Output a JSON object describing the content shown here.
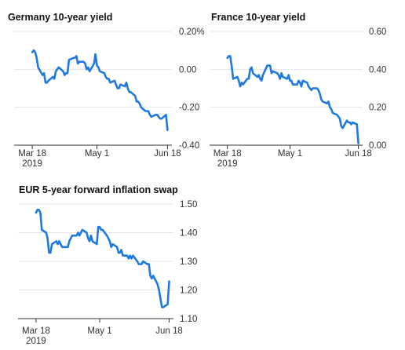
{
  "chart_data": [
    {
      "type": "line",
      "title": "Germany 10-year yield",
      "xlabel": "",
      "ylabel": "",
      "x_ticks": [
        {
          "date": "2019-03-18",
          "lines": [
            "Mar 18",
            "2019"
          ]
        },
        {
          "date": "2019-05-01",
          "lines": [
            "May 1"
          ]
        },
        {
          "date": "2019-06-18",
          "lines": [
            "Jun 18"
          ]
        }
      ],
      "xlim": [
        "2019-03-11",
        "2019-06-21"
      ],
      "y_ticks": [
        {
          "value": 0.2,
          "label": "0.20%"
        },
        {
          "value": 0.0,
          "label": "0.00"
        },
        {
          "value": -0.2,
          "label": "-0.20"
        },
        {
          "value": -0.4,
          "label": "-0.40"
        }
      ],
      "ylim": [
        -0.4,
        0.2
      ],
      "grid": true,
      "color": "#1f7ae0",
      "series": [
        {
          "x": [
            "2019-03-18",
            "2019-03-19",
            "2019-03-20",
            "2019-03-21",
            "2019-03-22",
            "2019-03-25",
            "2019-03-26",
            "2019-03-27",
            "2019-03-28",
            "2019-03-29",
            "2019-04-01",
            "2019-04-02",
            "2019-04-03",
            "2019-04-04",
            "2019-04-05",
            "2019-04-08",
            "2019-04-09",
            "2019-04-10",
            "2019-04-11",
            "2019-04-12",
            "2019-04-15",
            "2019-04-16",
            "2019-04-17",
            "2019-04-18",
            "2019-04-19",
            "2019-04-22",
            "2019-04-23",
            "2019-04-24",
            "2019-04-25",
            "2019-04-26",
            "2019-04-29",
            "2019-04-30",
            "2019-05-01",
            "2019-05-02",
            "2019-05-03",
            "2019-05-06",
            "2019-05-07",
            "2019-05-08",
            "2019-05-09",
            "2019-05-10",
            "2019-05-13",
            "2019-05-14",
            "2019-05-15",
            "2019-05-16",
            "2019-05-17",
            "2019-05-20",
            "2019-05-21",
            "2019-05-22",
            "2019-05-23",
            "2019-05-24",
            "2019-05-27",
            "2019-05-28",
            "2019-05-29",
            "2019-05-30",
            "2019-05-31",
            "2019-06-03",
            "2019-06-04",
            "2019-06-05",
            "2019-06-06",
            "2019-06-07",
            "2019-06-10",
            "2019-06-11",
            "2019-06-12",
            "2019-06-13",
            "2019-06-14",
            "2019-06-17",
            "2019-06-18"
          ],
          "values": [
            0.09,
            0.1,
            0.09,
            0.06,
            0.01,
            -0.03,
            -0.02,
            -0.07,
            -0.07,
            -0.06,
            -0.04,
            -0.05,
            -0.01,
            0.0,
            0.01,
            -0.01,
            -0.03,
            -0.02,
            -0.02,
            0.05,
            0.06,
            0.06,
            0.07,
            0.03,
            0.04,
            0.04,
            0.03,
            0.0,
            0.01,
            -0.01,
            0.03,
            0.08,
            0.02,
            0.01,
            -0.01,
            -0.02,
            -0.04,
            -0.05,
            -0.05,
            -0.07,
            -0.06,
            -0.08,
            -0.1,
            -0.1,
            -0.08,
            -0.09,
            -0.07,
            -0.1,
            -0.12,
            -0.12,
            -0.14,
            -0.17,
            -0.17,
            -0.18,
            -0.2,
            -0.22,
            -0.22,
            -0.22,
            -0.24,
            -0.25,
            -0.24,
            -0.24,
            -0.25,
            -0.26,
            -0.26,
            -0.24,
            -0.32
          ]
        }
      ]
    },
    {
      "type": "line",
      "title": "France 10-year yield",
      "xlabel": "",
      "ylabel": "",
      "x_ticks": [
        {
          "date": "2019-03-18",
          "lines": [
            "Mar 18",
            "2019"
          ]
        },
        {
          "date": "2019-05-01",
          "lines": [
            "May 1"
          ]
        },
        {
          "date": "2019-06-18",
          "lines": [
            "Jun 18"
          ]
        }
      ],
      "xlim": [
        "2019-03-11",
        "2019-06-21"
      ],
      "y_ticks": [
        {
          "value": 0.6,
          "label": "0.60"
        },
        {
          "value": 0.4,
          "label": "0.40"
        },
        {
          "value": 0.2,
          "label": "0.20"
        },
        {
          "value": 0.0,
          "label": "0.00"
        }
      ],
      "ylim": [
        0.0,
        0.6
      ],
      "grid": true,
      "color": "#1f7ae0",
      "series": [
        {
          "x": [
            "2019-03-18",
            "2019-03-19",
            "2019-03-20",
            "2019-03-21",
            "2019-03-22",
            "2019-03-25",
            "2019-03-26",
            "2019-03-27",
            "2019-03-28",
            "2019-03-29",
            "2019-04-01",
            "2019-04-02",
            "2019-04-03",
            "2019-04-04",
            "2019-04-05",
            "2019-04-08",
            "2019-04-09",
            "2019-04-10",
            "2019-04-11",
            "2019-04-12",
            "2019-04-15",
            "2019-04-16",
            "2019-04-17",
            "2019-04-18",
            "2019-04-19",
            "2019-04-22",
            "2019-04-23",
            "2019-04-24",
            "2019-04-25",
            "2019-04-26",
            "2019-04-29",
            "2019-04-30",
            "2019-05-01",
            "2019-05-02",
            "2019-05-03",
            "2019-05-06",
            "2019-05-07",
            "2019-05-08",
            "2019-05-09",
            "2019-05-10",
            "2019-05-13",
            "2019-05-14",
            "2019-05-15",
            "2019-05-16",
            "2019-05-17",
            "2019-05-20",
            "2019-05-21",
            "2019-05-22",
            "2019-05-23",
            "2019-05-24",
            "2019-05-27",
            "2019-05-28",
            "2019-05-29",
            "2019-05-30",
            "2019-05-31",
            "2019-06-03",
            "2019-06-04",
            "2019-06-05",
            "2019-06-06",
            "2019-06-07",
            "2019-06-10",
            "2019-06-11",
            "2019-06-12",
            "2019-06-13",
            "2019-06-14",
            "2019-06-17",
            "2019-06-18"
          ],
          "values": [
            0.46,
            0.47,
            0.47,
            0.42,
            0.35,
            0.36,
            0.34,
            0.31,
            0.33,
            0.32,
            0.35,
            0.35,
            0.4,
            0.41,
            0.38,
            0.36,
            0.37,
            0.35,
            0.34,
            0.37,
            0.42,
            0.42,
            0.42,
            0.38,
            0.39,
            0.38,
            0.37,
            0.35,
            0.38,
            0.36,
            0.35,
            0.37,
            0.34,
            0.34,
            0.32,
            0.32,
            0.34,
            0.33,
            0.31,
            0.34,
            0.33,
            0.31,
            0.3,
            0.29,
            0.3,
            0.3,
            0.29,
            0.27,
            0.24,
            0.23,
            0.22,
            0.23,
            0.2,
            0.19,
            0.17,
            0.16,
            0.15,
            0.14,
            0.1,
            0.09,
            0.13,
            0.12,
            0.12,
            0.11,
            0.12,
            0.11,
            0.01
          ]
        }
      ]
    },
    {
      "type": "line",
      "title": "EUR 5-year forward inflation swap",
      "xlabel": "",
      "ylabel": "",
      "x_ticks": [
        {
          "date": "2019-03-18",
          "lines": [
            "Mar 18",
            "2019"
          ]
        },
        {
          "date": "2019-05-01",
          "lines": [
            "May 1"
          ]
        },
        {
          "date": "2019-06-18",
          "lines": [
            "Jun 18"
          ]
        }
      ],
      "xlim": [
        "2019-03-11",
        "2019-06-21"
      ],
      "y_ticks": [
        {
          "value": 1.5,
          "label": "1.50"
        },
        {
          "value": 1.4,
          "label": "1.40"
        },
        {
          "value": 1.3,
          "label": "1.30"
        },
        {
          "value": 1.2,
          "label": "1.20"
        },
        {
          "value": 1.1,
          "label": "1.10"
        }
      ],
      "ylim": [
        1.1,
        1.5
      ],
      "grid": true,
      "color": "#1f7ae0",
      "series": [
        {
          "x": [
            "2019-03-18",
            "2019-03-19",
            "2019-03-20",
            "2019-03-21",
            "2019-03-22",
            "2019-03-25",
            "2019-03-26",
            "2019-03-27",
            "2019-03-28",
            "2019-03-29",
            "2019-04-01",
            "2019-04-02",
            "2019-04-03",
            "2019-04-04",
            "2019-04-05",
            "2019-04-08",
            "2019-04-09",
            "2019-04-10",
            "2019-04-11",
            "2019-04-12",
            "2019-04-15",
            "2019-04-16",
            "2019-04-17",
            "2019-04-18",
            "2019-04-19",
            "2019-04-22",
            "2019-04-23",
            "2019-04-24",
            "2019-04-25",
            "2019-04-26",
            "2019-04-29",
            "2019-04-30",
            "2019-05-01",
            "2019-05-02",
            "2019-05-03",
            "2019-05-06",
            "2019-05-07",
            "2019-05-08",
            "2019-05-09",
            "2019-05-10",
            "2019-05-13",
            "2019-05-14",
            "2019-05-15",
            "2019-05-16",
            "2019-05-17",
            "2019-05-20",
            "2019-05-21",
            "2019-05-22",
            "2019-05-23",
            "2019-05-24",
            "2019-05-27",
            "2019-05-28",
            "2019-05-29",
            "2019-05-30",
            "2019-05-31",
            "2019-06-03",
            "2019-06-04",
            "2019-06-05",
            "2019-06-06",
            "2019-06-07",
            "2019-06-10",
            "2019-06-11",
            "2019-06-12",
            "2019-06-13",
            "2019-06-14",
            "2019-06-17",
            "2019-06-18"
          ],
          "values": [
            1.47,
            1.48,
            1.48,
            1.47,
            1.41,
            1.4,
            1.38,
            1.33,
            1.33,
            1.36,
            1.37,
            1.36,
            1.37,
            1.36,
            1.35,
            1.35,
            1.35,
            1.37,
            1.38,
            1.39,
            1.39,
            1.4,
            1.39,
            1.4,
            1.41,
            1.4,
            1.38,
            1.37,
            1.39,
            1.37,
            1.36,
            1.42,
            1.42,
            1.41,
            1.41,
            1.39,
            1.38,
            1.37,
            1.35,
            1.36,
            1.35,
            1.33,
            1.33,
            1.34,
            1.32,
            1.32,
            1.31,
            1.32,
            1.31,
            1.32,
            1.3,
            1.29,
            1.29,
            1.29,
            1.3,
            1.29,
            1.29,
            1.25,
            1.24,
            1.25,
            1.22,
            1.2,
            1.17,
            1.14,
            1.14,
            1.15,
            1.23
          ]
        }
      ]
    }
  ]
}
